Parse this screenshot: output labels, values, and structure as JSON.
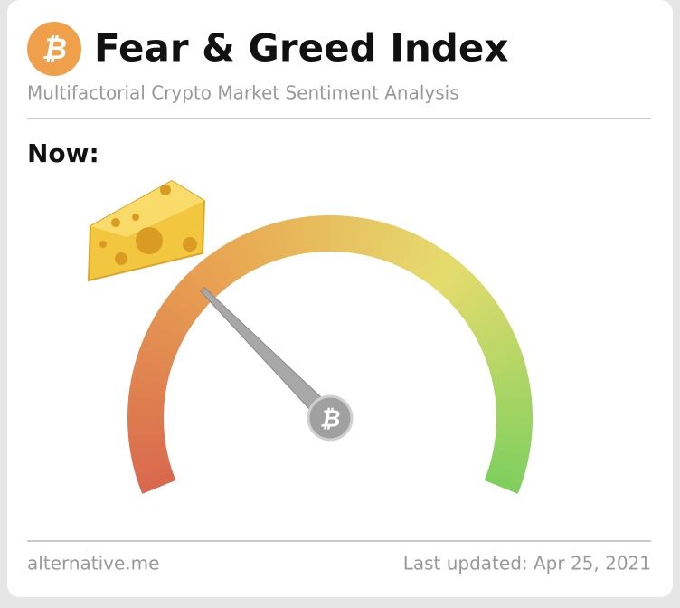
{
  "header": {
    "title": "Fear & Greed Index",
    "subtitle": "Multifactorial Crypto Market Sentiment Analysis"
  },
  "now_label": "Now:",
  "gauge": {
    "value": 30,
    "range": [
      0,
      100
    ]
  },
  "footer": {
    "source": "alternative.me",
    "updated": "Last updated: Apr 25, 2021"
  }
}
